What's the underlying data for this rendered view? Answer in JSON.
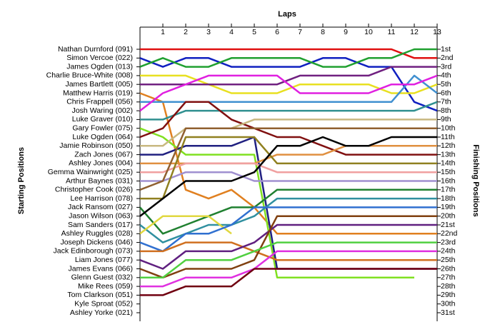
{
  "chart_data": {
    "type": "line",
    "xlabel": "Laps",
    "ylabel": "Starting Positions",
    "y2label": "Finishing Positions",
    "x": [
      0,
      1,
      2,
      3,
      4,
      5,
      6,
      7,
      8,
      9,
      10,
      11,
      12,
      13
    ],
    "xlim": [
      0,
      13
    ],
    "xticks": [
      1,
      2,
      3,
      4,
      5,
      6,
      7,
      8,
      9,
      10,
      11,
      12,
      13
    ],
    "ylim": [
      1,
      31
    ],
    "inverted_y": true,
    "yticks": [
      {
        "value": 1,
        "label": "1st"
      },
      {
        "value": 2,
        "label": "2nd"
      },
      {
        "value": 3,
        "label": "3rd"
      },
      {
        "value": 4,
        "label": "4th"
      },
      {
        "value": 5,
        "label": "5th"
      },
      {
        "value": 6,
        "label": "6th"
      },
      {
        "value": 7,
        "label": "7th"
      },
      {
        "value": 8,
        "label": "8th"
      },
      {
        "value": 9,
        "label": "9th"
      },
      {
        "value": 10,
        "label": "10th"
      },
      {
        "value": 11,
        "label": "11th"
      },
      {
        "value": 12,
        "label": "12th"
      },
      {
        "value": 13,
        "label": "13th"
      },
      {
        "value": 14,
        "label": "14th"
      },
      {
        "value": 15,
        "label": "15th"
      },
      {
        "value": 16,
        "label": "16th"
      },
      {
        "value": 17,
        "label": "17th"
      },
      {
        "value": 18,
        "label": "18th"
      },
      {
        "value": 19,
        "label": "19th"
      },
      {
        "value": 20,
        "label": "20th"
      },
      {
        "value": 21,
        "label": "21st"
      },
      {
        "value": 22,
        "label": "22nd"
      },
      {
        "value": 23,
        "label": "23rd"
      },
      {
        "value": 24,
        "label": "24th"
      },
      {
        "value": 25,
        "label": "25th"
      },
      {
        "value": 26,
        "label": "26th"
      },
      {
        "value": 27,
        "label": "27th"
      },
      {
        "value": 28,
        "label": "28th"
      },
      {
        "value": 29,
        "label": "29th"
      },
      {
        "value": 30,
        "label": "30th"
      },
      {
        "value": 31,
        "label": "31st"
      }
    ],
    "series": [
      {
        "name": "Nathan Durnford (091)",
        "color": "#e01010",
        "values": [
          1,
          1,
          1,
          1,
          1,
          1,
          1,
          1,
          1,
          1,
          1,
          1,
          2,
          2
        ]
      },
      {
        "name": "Simon Vercoe (022)",
        "color": "#1020c0",
        "values": [
          2,
          3,
          2,
          2,
          3,
          3,
          3,
          3,
          2,
          2,
          3,
          3,
          7,
          8
        ]
      },
      {
        "name": "James Ogden (013)",
        "color": "#20a030",
        "values": [
          3,
          2,
          3,
          3,
          2,
          2,
          2,
          2,
          3,
          3,
          2,
          2,
          1,
          1
        ]
      },
      {
        "name": "Charlie Bruce-White (008)",
        "color": "#e8e020",
        "values": [
          4,
          4,
          4,
          5,
          6,
          6,
          6,
          5,
          5,
          5,
          5,
          6,
          6,
          5
        ]
      },
      {
        "name": "James Bartlett (005)",
        "color": "#702080",
        "values": [
          5,
          5,
          5,
          5,
          5,
          5,
          5,
          4,
          4,
          4,
          4,
          3,
          3,
          3
        ]
      },
      {
        "name": "Matthew Harris (019)",
        "color": "#e08020",
        "values": [
          6,
          7,
          17,
          18,
          17,
          19,
          22,
          22,
          22,
          22,
          22,
          22,
          22,
          22
        ]
      },
      {
        "name": "Chris Frappell (056)",
        "color": "#4090d0",
        "values": [
          7,
          7,
          7,
          7,
          7,
          7,
          7,
          7,
          7,
          7,
          7,
          7,
          4,
          6
        ]
      },
      {
        "name": "Josh Waring (002)",
        "color": "#e020e0",
        "values": [
          8,
          6,
          5,
          4,
          4,
          4,
          4,
          6,
          6,
          6,
          6,
          5,
          5,
          4
        ]
      },
      {
        "name": "Luke Graver (010)",
        "color": "#309090",
        "values": [
          9,
          9,
          8,
          8,
          8,
          8,
          8,
          8,
          8,
          8,
          8,
          8,
          8,
          7
        ]
      },
      {
        "name": "Gary Fowler (075)",
        "color": "#80e020",
        "values": [
          10,
          11,
          13,
          13,
          13,
          13,
          27,
          27,
          27,
          27,
          27,
          27,
          27,
          null
        ]
      },
      {
        "name": "Luke Ogden (064)",
        "color": "#801010",
        "values": [
          11,
          10,
          7,
          7,
          9,
          10,
          11,
          11,
          12,
          13,
          13,
          13,
          13,
          13
        ]
      },
      {
        "name": "Jamie Robinson (050)",
        "color": "#c8b880",
        "values": [
          12,
          12,
          10,
          10,
          10,
          9,
          9,
          9,
          9,
          9,
          9,
          9,
          9,
          9
        ]
      },
      {
        "name": "Zach Jones (067)",
        "color": "#202080",
        "values": [
          13,
          13,
          12,
          12,
          12,
          11,
          26,
          26,
          26,
          26,
          26,
          26,
          26,
          26
        ]
      },
      {
        "name": "Ashley Jones (004)",
        "color": "#e09040",
        "values": [
          14,
          14,
          14,
          14,
          14,
          14,
          13,
          13,
          13,
          12,
          12,
          12,
          12,
          12
        ]
      },
      {
        "name": "Gemma Wainwright (025)",
        "color": "#f0a0a0",
        "values": [
          15,
          15,
          14,
          14,
          14,
          14,
          15,
          15,
          15,
          15,
          15,
          15,
          15,
          15
        ]
      },
      {
        "name": "Arthur Baynes (031)",
        "color": "#a090d0",
        "values": [
          16,
          16,
          15,
          15,
          15,
          16,
          16,
          16,
          16,
          16,
          16,
          16,
          16,
          16
        ]
      },
      {
        "name": "Christopher Cook (026)",
        "color": "#906030",
        "values": [
          17,
          16,
          10,
          10,
          10,
          10,
          10,
          10,
          10,
          10,
          10,
          10,
          10,
          10
        ]
      },
      {
        "name": "Lee Harrison (078)",
        "color": "#908020",
        "values": [
          18,
          18,
          11,
          11,
          11,
          11,
          14,
          14,
          14,
          14,
          14,
          14,
          14,
          14
        ]
      },
      {
        "name": "Jack Ransom (027)",
        "color": "#208030",
        "values": [
          19,
          22,
          21,
          20,
          19,
          19,
          17,
          17,
          17,
          17,
          17,
          17,
          17,
          17
        ]
      },
      {
        "name": "Jason Wilson (063)",
        "color": "#000000",
        "values": [
          20,
          18,
          16,
          16,
          16,
          15,
          12,
          12,
          11,
          12,
          12,
          11,
          11,
          11
        ]
      },
      {
        "name": "Sam Sanders (017)",
        "color": "#3090a0",
        "values": [
          21,
          23,
          22,
          21,
          21,
          20,
          18,
          18,
          18,
          18,
          18,
          18,
          18,
          18
        ]
      },
      {
        "name": "Ashley Ruggles (028)",
        "color": "#e0d840",
        "values": [
          22,
          20,
          20,
          20,
          22,
          null,
          null,
          null,
          null,
          null,
          null,
          null,
          null,
          null
        ]
      },
      {
        "name": "Joseph Dickens (046)",
        "color": "#3070d0",
        "values": [
          23,
          24,
          22,
          22,
          21,
          19,
          19,
          19,
          19,
          19,
          19,
          19,
          19,
          19
        ]
      },
      {
        "name": "Jack Edinborough (073)",
        "color": "#d07020",
        "values": [
          24,
          24,
          23,
          23,
          23,
          24,
          25,
          25,
          25,
          25,
          25,
          25,
          25,
          25
        ]
      },
      {
        "name": "Liam Jones (077)",
        "color": "#602080",
        "values": [
          25,
          26,
          24,
          24,
          24,
          23,
          21,
          21,
          21,
          21,
          21,
          21,
          21,
          21
        ]
      },
      {
        "name": "James Evans (066)",
        "color": "#804010",
        "values": [
          26,
          27,
          26,
          26,
          26,
          25,
          20,
          20,
          20,
          20,
          20,
          20,
          20,
          20
        ]
      },
      {
        "name": "Glenn Guest (032)",
        "color": "#50d040",
        "values": [
          27,
          27,
          25,
          25,
          25,
          24,
          23,
          23,
          23,
          23,
          23,
          23,
          23,
          23
        ]
      },
      {
        "name": "Mike Rees (059)",
        "color": "#e030e0",
        "values": [
          28,
          28,
          27,
          27,
          27,
          26,
          24,
          24,
          24,
          24,
          24,
          24,
          24,
          24
        ]
      },
      {
        "name": "Tom Clarkson (051)",
        "color": "#700010",
        "values": [
          29,
          29,
          28,
          28,
          28,
          26,
          26,
          26,
          26,
          26,
          26,
          26,
          26,
          26
        ]
      },
      {
        "name": "Kyle Sproat (052)",
        "color": "#808080",
        "values": [
          30,
          null,
          null,
          null,
          null,
          null,
          null,
          null,
          null,
          null,
          null,
          null,
          null,
          null
        ]
      },
      {
        "name": "Ashley Yorke (021)",
        "color": "#808080",
        "values": [
          31,
          null,
          null,
          null,
          null,
          null,
          null,
          null,
          null,
          null,
          null,
          null,
          null,
          null
        ]
      }
    ]
  }
}
